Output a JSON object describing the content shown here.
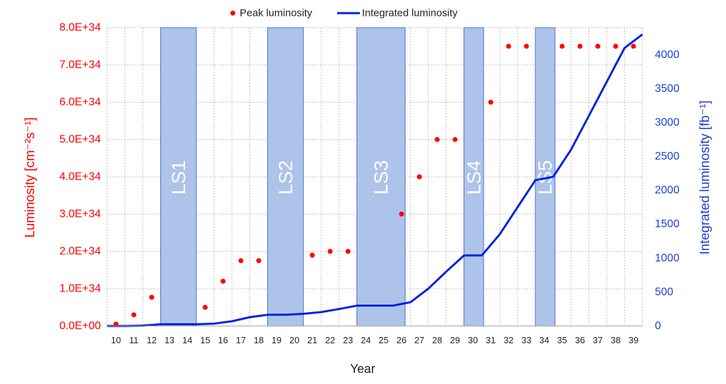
{
  "chart_data": {
    "type": "line",
    "xlabel": "Year",
    "ylabel_left": "Luminosity [cm⁻²s⁻¹]",
    "ylabel_right": "Integrated luminosity [fb⁻¹]",
    "x_ticks": [
      10,
      11,
      12,
      13,
      14,
      15,
      16,
      17,
      18,
      19,
      20,
      21,
      22,
      23,
      24,
      25,
      26,
      27,
      28,
      29,
      30,
      31,
      32,
      33,
      34,
      35,
      36,
      37,
      38,
      39
    ],
    "x_range": [
      9.5,
      39.5
    ],
    "y_left_range": [
      0,
      8e+34
    ],
    "y_left_ticks": [
      "0.0E+00",
      "1.0E+34",
      "2.0E+34",
      "3.0E+34",
      "4.0E+34",
      "5.0E+34",
      "6.0E+34",
      "7.0E+34",
      "8.0E+34"
    ],
    "y_right_range": [
      0,
      4400
    ],
    "y_right_ticks": [
      0,
      500,
      1000,
      1500,
      2000,
      2500,
      3000,
      3500,
      4000
    ],
    "legend_position": "top-center",
    "grid": true,
    "series": [
      {
        "name": "Peak luminosity",
        "kind": "scatter",
        "axis": "left",
        "color": "#ff0000",
        "points": [
          [
            10.0,
            5e+32
          ],
          [
            11.0,
            3e+33
          ],
          [
            12.0,
            7.7e+33
          ],
          [
            15.0,
            5e+33
          ],
          [
            16.0,
            1.2e+34
          ],
          [
            17.0,
            1.75e+34
          ],
          [
            18.0,
            1.75e+34
          ],
          [
            21.0,
            1.9e+34
          ],
          [
            22.0,
            2e+34
          ],
          [
            23.0,
            2e+34
          ],
          [
            26.0,
            3e+34
          ],
          [
            27.0,
            4e+34
          ],
          [
            28.0,
            5e+34
          ],
          [
            29.0,
            5e+34
          ],
          [
            31.0,
            6e+34
          ],
          [
            32.0,
            7.5e+34
          ],
          [
            33.0,
            7.5e+34
          ],
          [
            35.0,
            7.5e+34
          ],
          [
            36.0,
            7.5e+34
          ],
          [
            37.0,
            7.5e+34
          ],
          [
            38.0,
            7.5e+34
          ],
          [
            39.0,
            7.5e+34
          ]
        ]
      },
      {
        "name": "Integrated luminosity",
        "kind": "line",
        "axis": "right",
        "color": "#0022dd",
        "points": [
          [
            9.5,
            0
          ],
          [
            10.5,
            0
          ],
          [
            11.5,
            5
          ],
          [
            12.5,
            25
          ],
          [
            14.5,
            25
          ],
          [
            15.5,
            35
          ],
          [
            16.5,
            70
          ],
          [
            17.5,
            130
          ],
          [
            18.5,
            165
          ],
          [
            19.5,
            165
          ],
          [
            20.5,
            180
          ],
          [
            21.5,
            205
          ],
          [
            22.5,
            250
          ],
          [
            23.5,
            300
          ],
          [
            24.5,
            300
          ],
          [
            25.5,
            300
          ],
          [
            26.5,
            350
          ],
          [
            27.5,
            550
          ],
          [
            28.5,
            800
          ],
          [
            29.5,
            1040
          ],
          [
            30.5,
            1040
          ],
          [
            31.5,
            1350
          ],
          [
            32.5,
            1750
          ],
          [
            33.5,
            2150
          ],
          [
            34.5,
            2200
          ],
          [
            35.5,
            2600
          ],
          [
            36.5,
            3100
          ],
          [
            37.5,
            3600
          ],
          [
            38.5,
            4100
          ],
          [
            39.5,
            4300
          ]
        ]
      }
    ],
    "shutdowns": [
      {
        "label": "LS1",
        "start": 12.5,
        "end": 14.5
      },
      {
        "label": "LS2",
        "start": 18.5,
        "end": 20.5
      },
      {
        "label": "LS3",
        "start": 23.5,
        "end": 26.2
      },
      {
        "label": "LS4",
        "start": 29.5,
        "end": 30.6
      },
      {
        "label": "LS5",
        "start": 33.5,
        "end": 34.6
      }
    ]
  },
  "colors": {
    "left_axis": "#ff0000",
    "right_axis": "#1f3fd8",
    "shutdown_fill": "#aec3ea",
    "shutdown_stroke": "#4a72c8",
    "shutdown_text": "#ffffff",
    "grid": "#bdbdbd"
  }
}
